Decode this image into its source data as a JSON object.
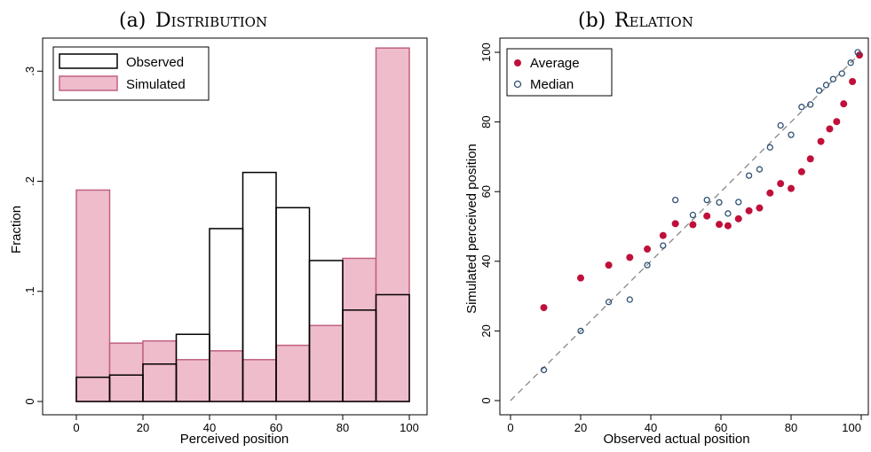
{
  "colors": {
    "observed_edge": "#000000",
    "simulated_fill": "#efbccb",
    "simulated_edge": "#c06080",
    "average": "#c0103a",
    "median": "#2e5073",
    "diagonal": "#888888"
  },
  "chart_data": [
    {
      "type": "bar",
      "title_prefix": "(a)",
      "title": "Distribution",
      "xlabel": "Perceived position",
      "ylabel": "Fraction",
      "xlim": [
        0,
        100
      ],
      "ylim": [
        0,
        0.33
      ],
      "xticks": [
        "0",
        "20",
        "40",
        "60",
        "80",
        "100"
      ],
      "yticks": [
        "0",
        ".1",
        ".2",
        ".3"
      ],
      "bin_edges": [
        0,
        10,
        20,
        30,
        40,
        50,
        60,
        70,
        80,
        90,
        100
      ],
      "legend_position": "top-left",
      "series": [
        {
          "name": "Observed",
          "style": "outline",
          "values": [
            0.022,
            0.024,
            0.034,
            0.061,
            0.157,
            0.208,
            0.176,
            0.128,
            0.083,
            0.097
          ]
        },
        {
          "name": "Simulated",
          "style": "filled",
          "values": [
            0.192,
            0.053,
            0.055,
            0.038,
            0.046,
            0.038,
            0.051,
            0.069,
            0.13,
            0.321
          ]
        }
      ]
    },
    {
      "type": "scatter",
      "title_prefix": "(b)",
      "title": "Relation",
      "xlabel": "Observed actual position",
      "ylabel": "Simulated perceived position",
      "xlim": [
        0,
        100
      ],
      "ylim": [
        0,
        100
      ],
      "xticks": [
        "0",
        "20",
        "40",
        "60",
        "80",
        "100"
      ],
      "yticks": [
        "0",
        "20",
        "40",
        "60",
        "80",
        "100"
      ],
      "reference_line": "45-degree dashed",
      "legend_position": "top-left",
      "series": [
        {
          "name": "Average",
          "marker": "filled-circle",
          "points": [
            [
              9.5,
              26.7
            ],
            [
              20,
              35.2
            ],
            [
              28,
              38.9
            ],
            [
              34,
              41.1
            ],
            [
              39,
              43.5
            ],
            [
              43.5,
              47.4
            ],
            [
              47,
              50.8
            ],
            [
              52,
              50.5
            ],
            [
              56,
              53
            ],
            [
              59.5,
              50.6
            ],
            [
              62,
              50.2
            ],
            [
              65,
              52.2
            ],
            [
              68,
              54.5
            ],
            [
              71,
              55.3
            ],
            [
              74,
              59.6
            ],
            [
              77,
              62.3
            ],
            [
              80,
              60.9
            ],
            [
              83,
              65.7
            ],
            [
              85.5,
              69.4
            ],
            [
              88.5,
              74.4
            ],
            [
              91,
              78
            ],
            [
              93,
              80.1
            ],
            [
              95,
              85.2
            ],
            [
              97.5,
              91.6
            ],
            [
              99.5,
              99.2
            ]
          ]
        },
        {
          "name": "Median",
          "marker": "hollow-circle",
          "points": [
            [
              9.5,
              8.8
            ],
            [
              20,
              20
            ],
            [
              28,
              28.3
            ],
            [
              34,
              29
            ],
            [
              39,
              38.9
            ],
            [
              43.5,
              44.5
            ],
            [
              47,
              57.6
            ],
            [
              52,
              53.3
            ],
            [
              56,
              57.6
            ],
            [
              59.5,
              56.9
            ],
            [
              62,
              53.7
            ],
            [
              65,
              57
            ],
            [
              68,
              64.6
            ],
            [
              71,
              66.4
            ],
            [
              74,
              72.7
            ],
            [
              77,
              79
            ],
            [
              80,
              76.3
            ],
            [
              83,
              84.3
            ],
            [
              85.5,
              85
            ],
            [
              88,
              89
            ],
            [
              90,
              90.6
            ],
            [
              92,
              92.3
            ],
            [
              94.5,
              93.9
            ],
            [
              97,
              97
            ],
            [
              99,
              100
            ]
          ]
        }
      ]
    }
  ]
}
